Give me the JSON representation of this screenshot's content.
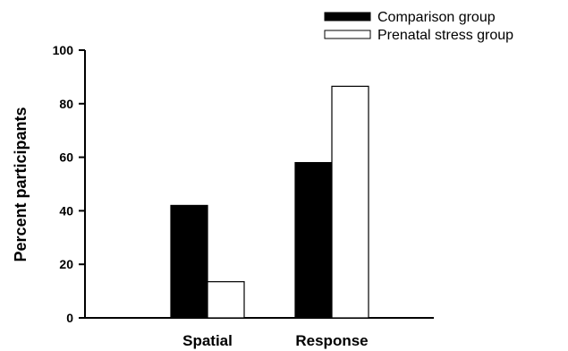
{
  "chart_data": {
    "type": "bar",
    "categories": [
      "Spatial",
      "Response"
    ],
    "series": [
      {
        "name": "Comparison group",
        "values": [
          42,
          58
        ],
        "fill": "#000000"
      },
      {
        "name": "Prenatal stress group",
        "values": [
          13.5,
          86.5
        ],
        "fill": "#ffffff"
      }
    ],
    "ylabel": "Percent participants",
    "xlabel": "",
    "ylim": [
      0,
      100
    ],
    "yticks": [
      0,
      20,
      40,
      60,
      80,
      100
    ],
    "yticks_labels": [
      "0",
      "20",
      "40",
      "60",
      "80",
      "100"
    ],
    "grid": false,
    "legend_position": "top-right"
  }
}
